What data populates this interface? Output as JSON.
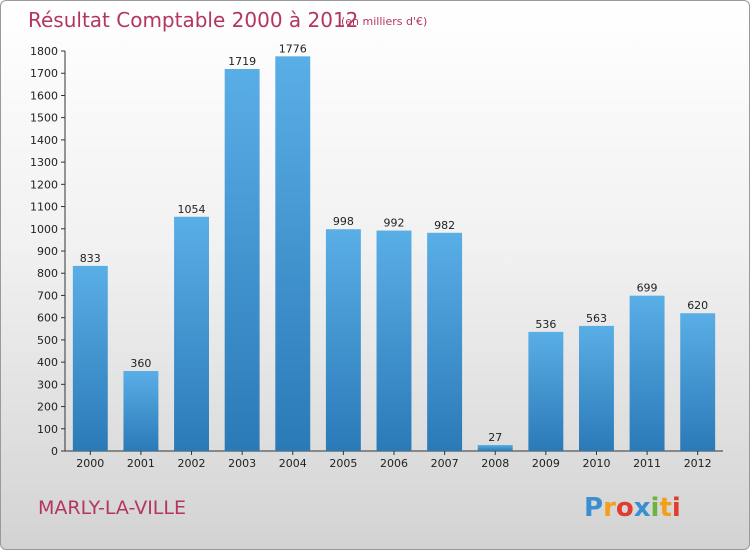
{
  "chart_data": {
    "type": "bar",
    "title": "Résultat Comptable 2000 à 2012",
    "subtitle": "(en milliers d'€)",
    "categories": [
      "2000",
      "2001",
      "2002",
      "2003",
      "2004",
      "2005",
      "2006",
      "2007",
      "2008",
      "2009",
      "2010",
      "2011",
      "2012"
    ],
    "values": [
      833,
      360,
      1054,
      1719,
      1776,
      998,
      992,
      982,
      27,
      536,
      563,
      699,
      620
    ],
    "xlabel": "",
    "ylabel": "",
    "ylim": [
      0,
      1800
    ],
    "yticks": [
      0,
      100,
      200,
      300,
      400,
      500,
      600,
      700,
      800,
      900,
      1000,
      1100,
      1200,
      1300,
      1400,
      1500,
      1600,
      1700,
      1800
    ],
    "grid": false,
    "colors": {
      "bar_top": "#5aaee6",
      "bar_bottom": "#2a7ab8",
      "title": "#b3365f"
    }
  },
  "town": "MARLY-LA-VILLE",
  "logo": {
    "letters": [
      "P",
      "r",
      "o",
      "x",
      "i",
      "t",
      "i"
    ],
    "colors": [
      "#3a8fd0",
      "#f2a01a",
      "#e23d2c",
      "#3a8fd0",
      "#6db33f",
      "#f2a01a",
      "#e23d2c"
    ]
  }
}
